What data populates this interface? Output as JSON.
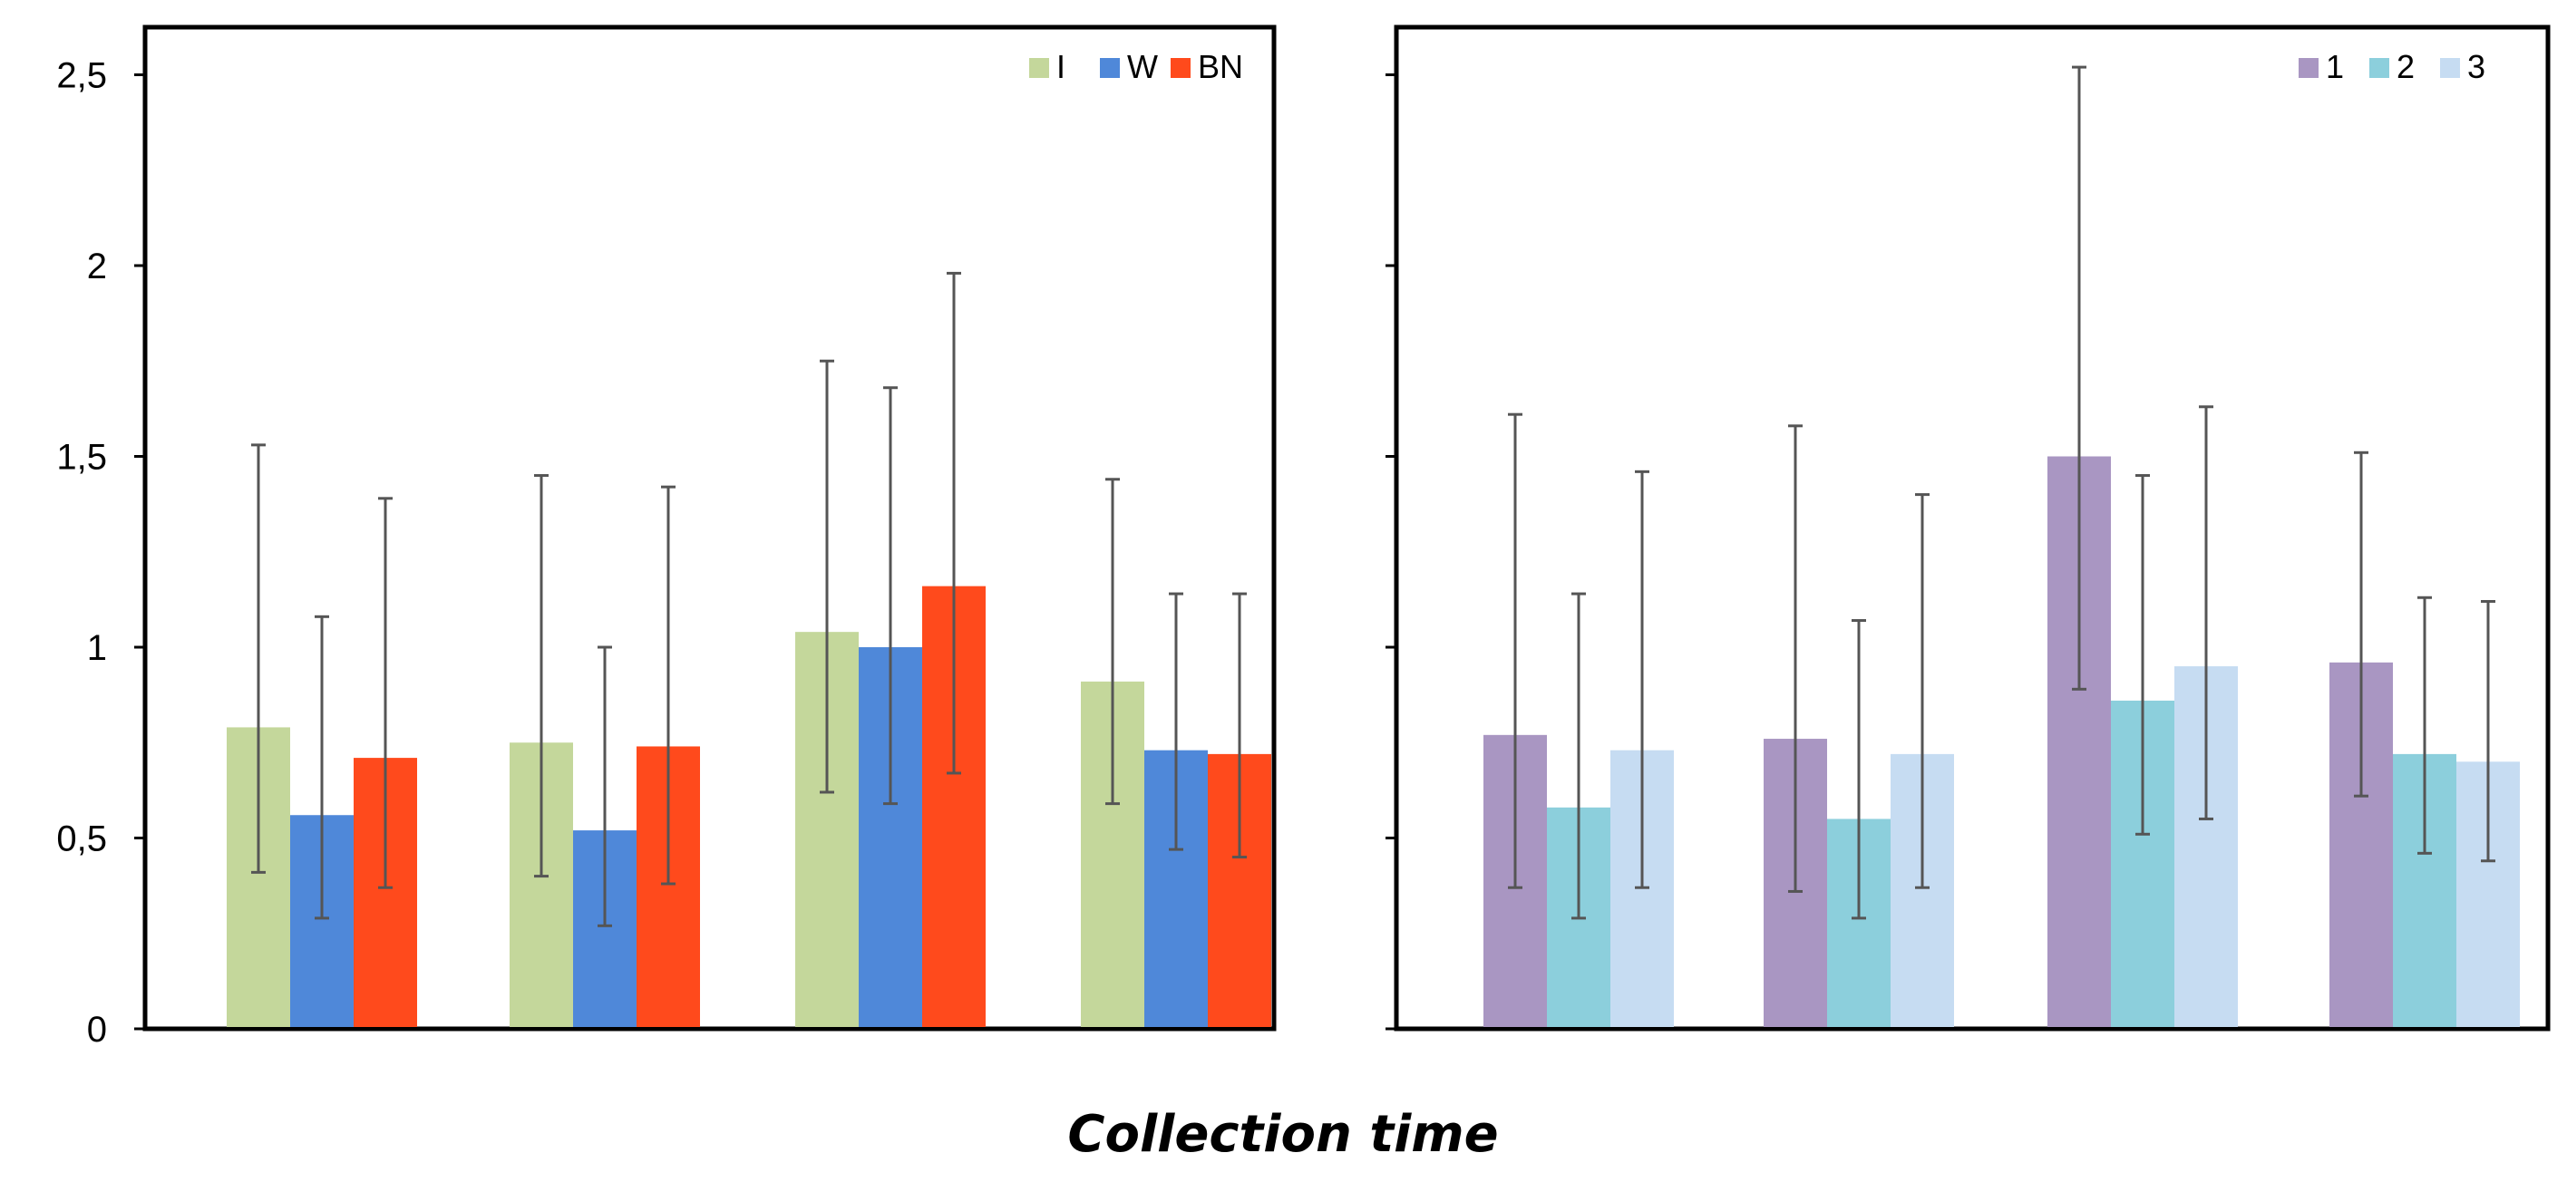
{
  "chart_data": [
    {
      "type": "bar",
      "categories": [
        "",
        "",
        "",
        ""
      ],
      "series": [
        {
          "name": "I",
          "color": "#c4d79b",
          "values": [
            0.79,
            0.75,
            1.04,
            0.91
          ],
          "err_low": [
            0.41,
            0.4,
            0.62,
            0.59
          ],
          "err_high": [
            1.53,
            1.45,
            1.75,
            1.44
          ]
        },
        {
          "name": "W",
          "color": "#4f88d9",
          "values": [
            0.56,
            0.52,
            1.0,
            0.73
          ],
          "err_low": [
            0.29,
            0.27,
            0.59,
            0.47
          ],
          "err_high": [
            1.08,
            1.0,
            1.68,
            1.14
          ]
        },
        {
          "name": "BN",
          "color": "#ff4a1c",
          "values": [
            0.71,
            0.74,
            1.16,
            0.72
          ],
          "err_low": [
            0.37,
            0.38,
            0.67,
            0.45
          ],
          "err_high": [
            1.39,
            1.42,
            1.98,
            1.14
          ]
        }
      ],
      "ylim": [
        0,
        2.5
      ],
      "yticks": [
        "0",
        "0,5",
        "1",
        "1,5",
        "2",
        "2,5"
      ],
      "legend_position": "top-right",
      "xlabel": "",
      "ylabel": "",
      "title": ""
    },
    {
      "type": "bar",
      "categories": [
        "",
        "",
        "",
        ""
      ],
      "series": [
        {
          "name": "1",
          "color": "#a996c2",
          "values": [
            0.77,
            0.76,
            1.5,
            0.96
          ],
          "err_low": [
            0.37,
            0.36,
            0.89,
            0.61
          ],
          "err_high": [
            1.61,
            1.58,
            2.52,
            1.51
          ]
        },
        {
          "name": "2",
          "color": "#8ccfdc",
          "values": [
            0.58,
            0.55,
            0.86,
            0.72
          ],
          "err_low": [
            0.29,
            0.29,
            0.51,
            0.46
          ],
          "err_high": [
            1.14,
            1.07,
            1.45,
            1.13
          ]
        },
        {
          "name": "3",
          "color": "#c6dcf2",
          "values": [
            0.73,
            0.72,
            0.95,
            0.7
          ],
          "err_low": [
            0.37,
            0.37,
            0.55,
            0.44
          ],
          "err_high": [
            1.46,
            1.4,
            1.63,
            1.12
          ]
        }
      ],
      "ylim": [
        0,
        2.5
      ],
      "yticks": [
        "",
        "",
        "",
        "",
        "",
        ""
      ],
      "legend_position": "top-right",
      "xlabel": "",
      "ylabel": "",
      "title": ""
    }
  ],
  "figure": {
    "xlabel": "Collection time"
  }
}
